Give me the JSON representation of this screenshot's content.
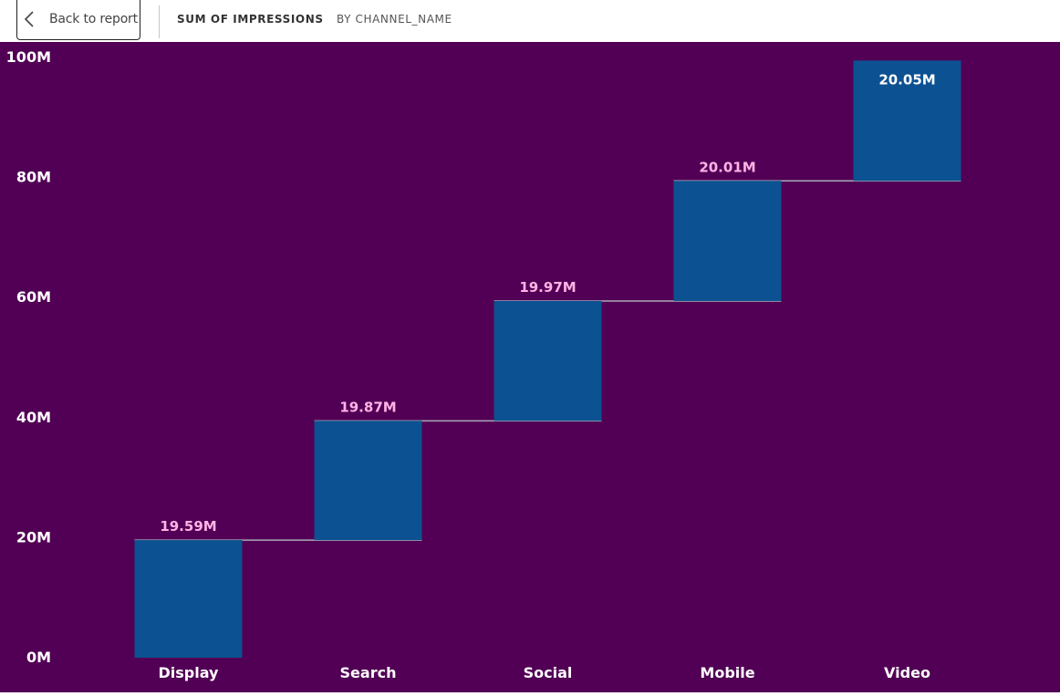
{
  "toolbar": {
    "back_label": "Back to report",
    "title": "SUM OF IMPRESSIONS",
    "subtitle": "BY CHANNEL_NAME"
  },
  "colors": {
    "background": "#520055",
    "bar": "#0C5191",
    "connector": "#a9a9b8",
    "label_intermediate": "#ffb3e6",
    "label_last": "#ffffff",
    "axis_text": "#ffffff"
  },
  "chart_data": {
    "type": "waterfall",
    "categories": [
      "Display",
      "Search",
      "Social",
      "Mobile",
      "Video"
    ],
    "values": [
      19.59,
      19.87,
      19.97,
      20.01,
      20.05
    ],
    "data_labels": [
      "19.59M",
      "19.87M",
      "19.97M",
      "20.01M",
      "20.05M"
    ],
    "y_ticks": [
      0,
      20,
      40,
      60,
      80,
      100
    ],
    "y_tick_labels": [
      "0M",
      "20M",
      "40M",
      "60M",
      "80M",
      "100M"
    ],
    "ylim": [
      0,
      100
    ],
    "unit": "M",
    "grid": false,
    "legend": "none"
  }
}
